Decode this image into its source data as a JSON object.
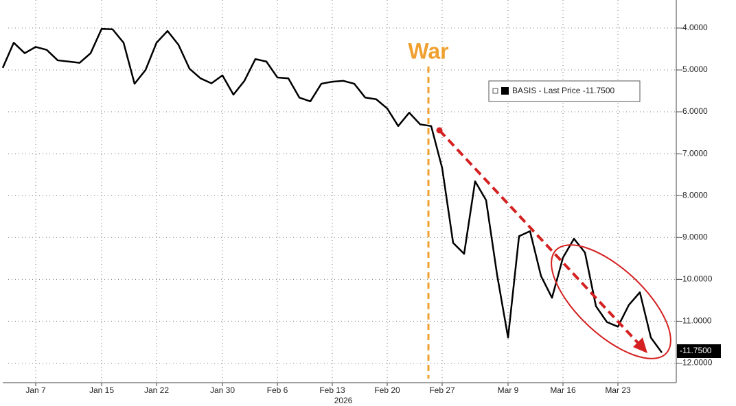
{
  "chart_data": {
    "type": "line",
    "categories": [
      null,
      null,
      null,
      "Jan 7",
      null,
      null,
      null,
      null,
      null,
      "Jan 15",
      null,
      null,
      null,
      null,
      "Jan 22",
      null,
      null,
      null,
      null,
      null,
      "Jan 30",
      null,
      null,
      null,
      null,
      "Feb 6",
      null,
      null,
      null,
      null,
      "Feb 13",
      null,
      null,
      null,
      null,
      "Feb 20",
      null,
      null,
      null,
      null,
      "Feb 27",
      null,
      null,
      null,
      null,
      null,
      "Mar 9",
      null,
      null,
      null,
      null,
      "Mar 16",
      null,
      null,
      null,
      null,
      "Mar 23",
      null,
      null,
      null,
      null
    ],
    "x_axis_year": "2026",
    "series": [
      {
        "name": "BASIS",
        "color": "#000000",
        "values": [
          -4.95,
          -4.35,
          -4.6,
          -4.45,
          -4.52,
          -4.77,
          -4.8,
          -4.83,
          -4.6,
          -4.02,
          -4.03,
          -4.35,
          -5.33,
          -5.0,
          -4.35,
          -4.07,
          -4.4,
          -4.97,
          -5.2,
          -5.32,
          -5.13,
          -5.59,
          -5.26,
          -4.74,
          -4.8,
          -5.18,
          -5.2,
          -5.66,
          -5.75,
          -5.33,
          -5.28,
          -5.26,
          -5.33,
          -5.66,
          -5.7,
          -5.92,
          -6.34,
          -6.02,
          -6.3,
          -6.34,
          -7.34,
          -9.13,
          -9.39,
          -7.66,
          -8.11,
          -9.89,
          -11.39,
          -8.97,
          -8.85,
          -9.92,
          -10.44,
          -9.48,
          -9.03,
          -9.36,
          -10.64,
          -11.02,
          -11.13,
          -10.61,
          -10.31,
          -11.39,
          -11.75
        ]
      }
    ],
    "legend_label": "BASIS - Last Price -11.7500",
    "last_value_label": "-11.7500",
    "annotation": "War",
    "ylim": [
      -12.5,
      -3.33
    ],
    "yticks": [
      {
        "value": -4,
        "label": "-4.0000"
      },
      {
        "value": -5,
        "label": "-5.0000"
      },
      {
        "value": -6,
        "label": "-6.0000"
      },
      {
        "value": -7,
        "label": "-7.0000"
      },
      {
        "value": -8,
        "label": "-8.0000"
      },
      {
        "value": -9,
        "label": "-9.0000"
      },
      {
        "value": -10,
        "label": "-10.0000"
      },
      {
        "value": -11,
        "label": "-11.0000"
      },
      {
        "value": -12,
        "label": "-12.0000"
      }
    ],
    "grid": true
  }
}
